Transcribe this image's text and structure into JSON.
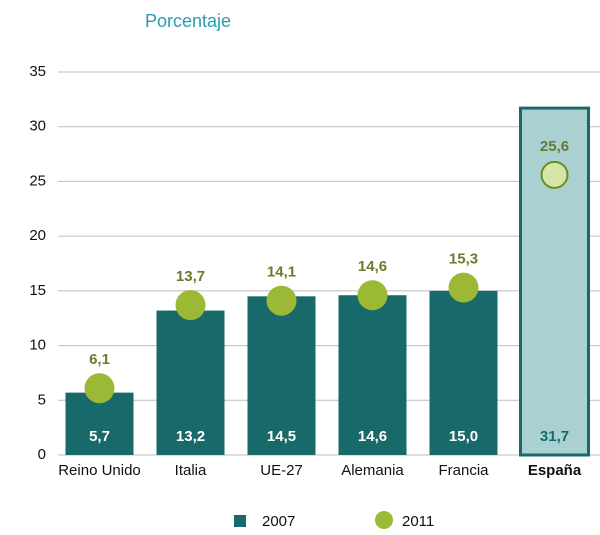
{
  "chart_data": {
    "type": "bar_dot",
    "subtitle": "Porcentaje",
    "categories": [
      "Reino Unido",
      "Italia",
      "UE-27",
      "Alemania",
      "Francia",
      "España"
    ],
    "highlight": "España",
    "series": [
      {
        "name": "2007",
        "color": "#17696a",
        "highlight_color": "#a9d1d1",
        "values": [
          5.7,
          13.2,
          14.5,
          14.6,
          15.0,
          31.7
        ],
        "value_labels": [
          "5,7",
          "13,2",
          "14,5",
          "14,6",
          "15,0",
          "31,7"
        ]
      },
      {
        "name": "2011",
        "color": "#9bb935",
        "highlight_color": "#d6e6a6",
        "values": [
          6.1,
          13.7,
          14.1,
          14.6,
          15.3,
          25.6
        ],
        "value_labels": [
          "6,1",
          "13,7",
          "14,1",
          "14,6",
          "15,3",
          "25,6"
        ]
      }
    ],
    "ylim": [
      0,
      35
    ],
    "yticks": [
      0,
      5,
      10,
      15,
      20,
      25,
      30,
      35
    ],
    "grid": true
  }
}
